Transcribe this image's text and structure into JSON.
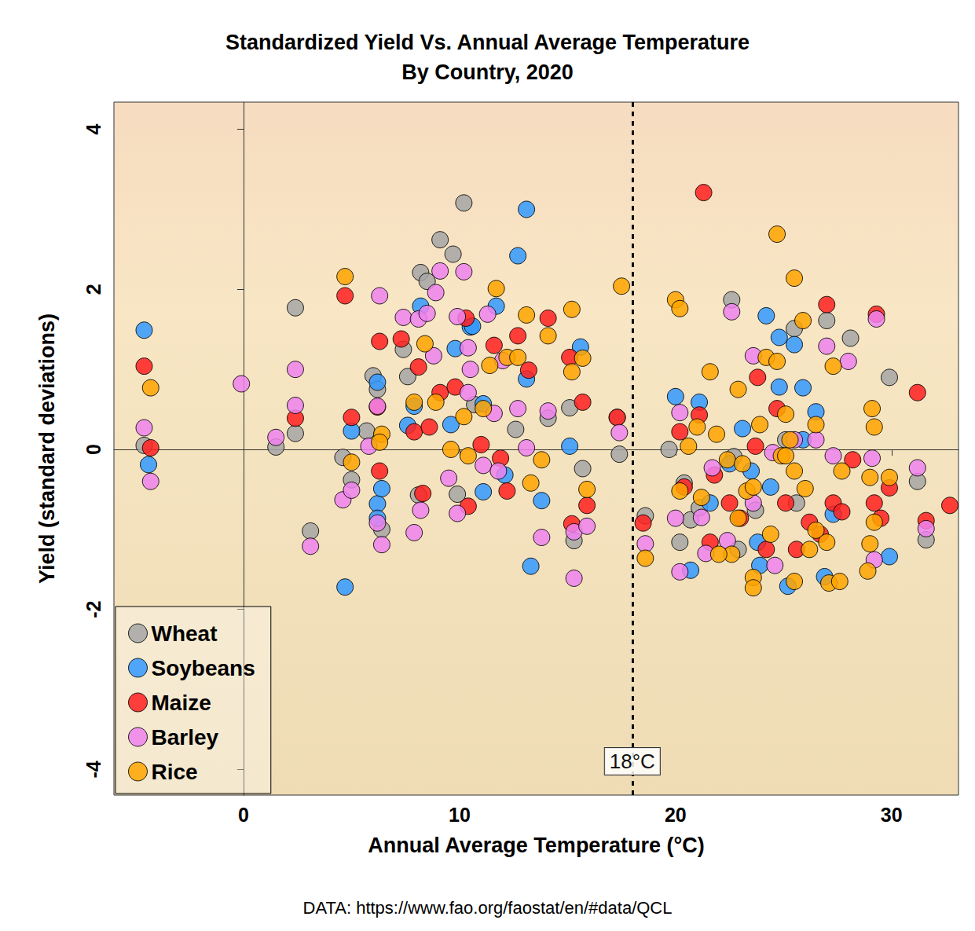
{
  "chart_data": {
    "type": "scatter",
    "title": "Standardized Yield Vs. Annual Average Temperature\nBy Country, 2020",
    "x_label": "Annual Average Temperature (°C)",
    "y_label": "Yield (standard deviations)",
    "caption": "DATA: https://www.fao.org/faostat/en/#data/QCL",
    "xlim": [
      -6,
      33.1
    ],
    "ylim": [
      -4.32,
      4.34
    ],
    "xticks": [
      0,
      10,
      20,
      30
    ],
    "yticks": [
      -4,
      -2,
      0,
      2,
      4
    ],
    "grid": false,
    "legend": "bottom-left",
    "marker": "circle",
    "annotations": [
      {
        "type": "vline",
        "x": 18,
        "label": "18°C",
        "line_style": "dashed"
      }
    ],
    "series": [
      {
        "name": "Wheat",
        "color": "#a6a6a6",
        "values": [
          [
            -4.6,
            0.05
          ],
          [
            2.4,
            1.77
          ],
          [
            2.4,
            0.2
          ],
          [
            1.5,
            0.03
          ],
          [
            3.1,
            -1.02
          ],
          [
            4.6,
            -0.1
          ],
          [
            5.0,
            -0.38
          ],
          [
            5.7,
            0.23
          ],
          [
            6.0,
            0.92
          ],
          [
            6.2,
            0.75
          ],
          [
            6.4,
            -1.0
          ],
          [
            8.2,
            2.21
          ],
          [
            8.5,
            2.1
          ],
          [
            9.1,
            2.62
          ],
          [
            9.7,
            2.44
          ],
          [
            10.2,
            3.08
          ],
          [
            9.9,
            -0.56
          ],
          [
            7.4,
            1.25
          ],
          [
            7.6,
            0.91
          ],
          [
            8.1,
            -0.57
          ],
          [
            10.7,
            0.56
          ],
          [
            12.6,
            0.25
          ],
          [
            14.1,
            0.39
          ],
          [
            15.1,
            0.52
          ],
          [
            15.3,
            -1.14
          ],
          [
            15.7,
            -0.24
          ],
          [
            17.3,
            0.4
          ],
          [
            17.4,
            -0.06
          ],
          [
            18.6,
            -0.83
          ],
          [
            19.7,
            0
          ],
          [
            20.2,
            -1.16
          ],
          [
            20.7,
            -0.88
          ],
          [
            22.7,
            -0.09
          ],
          [
            22.6,
            1.87
          ],
          [
            22.9,
            -1.25
          ],
          [
            25.5,
            1.51
          ],
          [
            27.0,
            1.61
          ],
          [
            28.1,
            1.39
          ],
          [
            29.9,
            0.9
          ],
          [
            31.2,
            -0.4
          ],
          [
            31.6,
            -1.13
          ],
          [
            25.1,
            0.12
          ],
          [
            25.6,
            -0.67
          ],
          [
            23.7,
            -0.76
          ],
          [
            20.4,
            -0.42
          ],
          [
            21.1,
            -0.73
          ]
        ]
      },
      {
        "name": "Soybeans",
        "color": "#3399ff",
        "values": [
          [
            -4.6,
            1.49
          ],
          [
            -4.4,
            -0.19
          ],
          [
            4.7,
            -1.72
          ],
          [
            5.0,
            0.23
          ],
          [
            6.2,
            -0.68
          ],
          [
            6.2,
            -0.86
          ],
          [
            6.4,
            -0.49
          ],
          [
            6.2,
            0.84
          ],
          [
            8.2,
            1.79
          ],
          [
            7.9,
            0.54
          ],
          [
            7.6,
            0.3
          ],
          [
            9.6,
            0.31
          ],
          [
            9.8,
            1.26
          ],
          [
            10.5,
            1.53
          ],
          [
            10.6,
            1.54
          ],
          [
            11.1,
            0.57
          ],
          [
            11.7,
            1.79
          ],
          [
            12.7,
            2.42
          ],
          [
            13.1,
            3.0
          ],
          [
            13.3,
            -1.46
          ],
          [
            13.1,
            0.88
          ],
          [
            13.8,
            -0.64
          ],
          [
            15.1,
            0.04
          ],
          [
            15.6,
            1.28
          ],
          [
            11.1,
            -0.53
          ],
          [
            12.1,
            -0.32
          ],
          [
            20.0,
            0.66
          ],
          [
            21.1,
            0.59
          ],
          [
            20.7,
            -1.51
          ],
          [
            24.2,
            1.67
          ],
          [
            24.8,
            1.4
          ],
          [
            25.5,
            1.31
          ],
          [
            25.9,
            0.77
          ],
          [
            24.8,
            0.78
          ],
          [
            26.5,
            0.47
          ],
          [
            26.9,
            -1.59
          ],
          [
            29.9,
            -1.34
          ],
          [
            25.2,
            -1.71
          ],
          [
            23.1,
            0.26
          ],
          [
            23.5,
            -0.27
          ],
          [
            23.8,
            -1.16
          ],
          [
            21.6,
            -0.67
          ],
          [
            25.9,
            0.12
          ],
          [
            27.3,
            -0.81
          ],
          [
            24.4,
            -0.47
          ],
          [
            22.5,
            -0.18
          ],
          [
            23.9,
            -1.45
          ]
        ]
      },
      {
        "name": "Maize",
        "color": "#ff2020",
        "values": [
          [
            -4.6,
            1.04
          ],
          [
            -4.3,
            0.02
          ],
          [
            4.7,
            1.92
          ],
          [
            2.4,
            0.39
          ],
          [
            5.0,
            0.4
          ],
          [
            6.3,
            1.35
          ],
          [
            6.2,
            0.53
          ],
          [
            6.3,
            -0.27
          ],
          [
            7.3,
            1.38
          ],
          [
            7.9,
            0.22
          ],
          [
            8.3,
            -0.55
          ],
          [
            8.1,
            1.03
          ],
          [
            8.6,
            0.28
          ],
          [
            9.1,
            0.71
          ],
          [
            9.8,
            0.78
          ],
          [
            10.3,
            1.64
          ],
          [
            10.4,
            -0.71
          ],
          [
            11.0,
            0.06
          ],
          [
            11.6,
            1.3
          ],
          [
            11.9,
            -0.11
          ],
          [
            12.2,
            -0.52
          ],
          [
            12.7,
            1.42
          ],
          [
            13.2,
            0.99
          ],
          [
            14.1,
            1.64
          ],
          [
            15.1,
            1.15
          ],
          [
            15.7,
            0.59
          ],
          [
            15.9,
            -0.7
          ],
          [
            15.2,
            -0.93
          ],
          [
            17.3,
            0.4
          ],
          [
            18.5,
            -0.92
          ],
          [
            21.3,
            3.21
          ],
          [
            20.2,
            0.22
          ],
          [
            20.4,
            -0.47
          ],
          [
            21.1,
            0.43
          ],
          [
            21.8,
            -0.32
          ],
          [
            22.5,
            -0.67
          ],
          [
            23.0,
            -0.86
          ],
          [
            23.7,
            0.04
          ],
          [
            23.8,
            0.9
          ],
          [
            24.7,
            0.51
          ],
          [
            25.1,
            -0.67
          ],
          [
            26.2,
            -0.91
          ],
          [
            27.0,
            1.81
          ],
          [
            27.3,
            -0.67
          ],
          [
            27.7,
            -0.78
          ],
          [
            28.2,
            -0.13
          ],
          [
            29.3,
            1.69
          ],
          [
            29.2,
            -0.67
          ],
          [
            29.5,
            -0.86
          ],
          [
            29.9,
            -0.48
          ],
          [
            31.2,
            0.71
          ],
          [
            31.6,
            -0.89
          ],
          [
            32.7,
            -0.7
          ],
          [
            26.7,
            -1.06
          ],
          [
            21.6,
            -1.16
          ],
          [
            24.2,
            -1.25
          ],
          [
            25.6,
            -1.25
          ]
        ]
      },
      {
        "name": "Barley",
        "color": "#ee82ee",
        "values": [
          [
            -4.6,
            0.27
          ],
          [
            -4.3,
            -0.4
          ],
          [
            -0.1,
            0.82
          ],
          [
            1.5,
            0.15
          ],
          [
            2.4,
            1.0
          ],
          [
            2.4,
            0.55
          ],
          [
            3.1,
            -1.21
          ],
          [
            4.6,
            -0.63
          ],
          [
            5.0,
            -0.51
          ],
          [
            5.8,
            0.04
          ],
          [
            6.2,
            0.54
          ],
          [
            6.3,
            1.92
          ],
          [
            6.2,
            -0.92
          ],
          [
            6.4,
            -1.19
          ],
          [
            7.4,
            1.65
          ],
          [
            7.9,
            -1.04
          ],
          [
            8.1,
            1.63
          ],
          [
            8.5,
            1.7
          ],
          [
            8.9,
            1.96
          ],
          [
            9.1,
            2.23
          ],
          [
            8.2,
            -0.76
          ],
          [
            8.8,
            1.17
          ],
          [
            9.5,
            -0.36
          ],
          [
            9.9,
            1.66
          ],
          [
            10.2,
            2.22
          ],
          [
            9.9,
            -0.8
          ],
          [
            10.4,
            1.27
          ],
          [
            10.5,
            1.0
          ],
          [
            10.4,
            0.71
          ],
          [
            11.1,
            -0.2
          ],
          [
            11.3,
            1.69
          ],
          [
            11.6,
            0.45
          ],
          [
            12.0,
            1.11
          ],
          [
            11.8,
            -0.27
          ],
          [
            12.7,
            0.51
          ],
          [
            13.1,
            0.02
          ],
          [
            13.8,
            -1.1
          ],
          [
            14.1,
            0.48
          ],
          [
            15.3,
            -1.03
          ],
          [
            15.3,
            -1.61
          ],
          [
            15.9,
            -0.96
          ],
          [
            17.4,
            0.21
          ],
          [
            18.6,
            -1.18
          ],
          [
            20.2,
            0.46
          ],
          [
            20.0,
            -0.86
          ],
          [
            20.2,
            -1.53
          ],
          [
            21.2,
            -0.85
          ],
          [
            21.4,
            -1.3
          ],
          [
            21.7,
            -0.23
          ],
          [
            22.6,
            1.72
          ],
          [
            22.4,
            -1.14
          ],
          [
            23.6,
            1.17
          ],
          [
            24.5,
            -0.04
          ],
          [
            24.6,
            -1.45
          ],
          [
            25.5,
            0.12
          ],
          [
            27.0,
            1.29
          ],
          [
            27.3,
            -0.08
          ],
          [
            28.0,
            1.1
          ],
          [
            29.1,
            -0.11
          ],
          [
            29.2,
            -1.38
          ],
          [
            29.3,
            1.63
          ],
          [
            31.2,
            -0.23
          ],
          [
            31.6,
            -0.99
          ],
          [
            26.5,
            0.12
          ],
          [
            23.6,
            -0.67
          ]
        ]
      },
      {
        "name": "Rice",
        "color": "#ffa500",
        "values": [
          [
            -4.3,
            0.77
          ],
          [
            4.7,
            2.16
          ],
          [
            5.0,
            -0.16
          ],
          [
            6.4,
            0.19
          ],
          [
            6.3,
            0.09
          ],
          [
            7.9,
            0.59
          ],
          [
            8.4,
            1.32
          ],
          [
            8.9,
            0.59
          ],
          [
            9.6,
            0.0
          ],
          [
            10.2,
            0.41
          ],
          [
            10.4,
            -0.08
          ],
          [
            11.4,
            1.05
          ],
          [
            11.7,
            2.01
          ],
          [
            11.1,
            0.51
          ],
          [
            12.2,
            1.15
          ],
          [
            12.7,
            1.15
          ],
          [
            13.1,
            1.68
          ],
          [
            13.3,
            -0.42
          ],
          [
            13.8,
            -0.13
          ],
          [
            14.1,
            1.42
          ],
          [
            15.2,
            1.75
          ],
          [
            15.2,
            0.97
          ],
          [
            15.7,
            1.14
          ],
          [
            15.9,
            -0.5
          ],
          [
            17.5,
            2.04
          ],
          [
            18.6,
            -1.36
          ],
          [
            20.0,
            1.87
          ],
          [
            20.2,
            1.76
          ],
          [
            20.2,
            -0.52
          ],
          [
            20.6,
            0.04
          ],
          [
            21.0,
            0.28
          ],
          [
            21.2,
            -0.6
          ],
          [
            21.6,
            0.97
          ],
          [
            21.9,
            0.19
          ],
          [
            22.4,
            -0.13
          ],
          [
            22.9,
            0.75
          ],
          [
            22.6,
            -1.31
          ],
          [
            23.3,
            -0.52
          ],
          [
            23.6,
            -1.6
          ],
          [
            23.6,
            -1.73
          ],
          [
            23.9,
            0.31
          ],
          [
            24.2,
            1.15
          ],
          [
            24.7,
            1.1
          ],
          [
            24.7,
            2.69
          ],
          [
            25.5,
            2.14
          ],
          [
            25.9,
            1.61
          ],
          [
            25.1,
            0.44
          ],
          [
            24.9,
            -0.08
          ],
          [
            25.5,
            -0.27
          ],
          [
            26.0,
            -0.49
          ],
          [
            26.5,
            0.31
          ],
          [
            26.5,
            -1.01
          ],
          [
            27.0,
            -1.16
          ],
          [
            27.3,
            1.04
          ],
          [
            27.1,
            -1.67
          ],
          [
            27.6,
            -1.65
          ],
          [
            27.7,
            -0.27
          ],
          [
            29.1,
            0.51
          ],
          [
            29.2,
            0.28
          ],
          [
            29.0,
            -0.35
          ],
          [
            29.2,
            -0.91
          ],
          [
            29.0,
            -1.18
          ],
          [
            28.9,
            -1.52
          ],
          [
            29.9,
            -0.35
          ],
          [
            25.5,
            -1.65
          ],
          [
            22.0,
            -1.31
          ],
          [
            24.4,
            -1.06
          ],
          [
            22.9,
            -0.86
          ],
          [
            25.1,
            -0.08
          ],
          [
            23.1,
            -0.18
          ],
          [
            25.3,
            0.12
          ],
          [
            26.2,
            -1.25
          ],
          [
            23.6,
            -0.47
          ]
        ]
      }
    ]
  }
}
